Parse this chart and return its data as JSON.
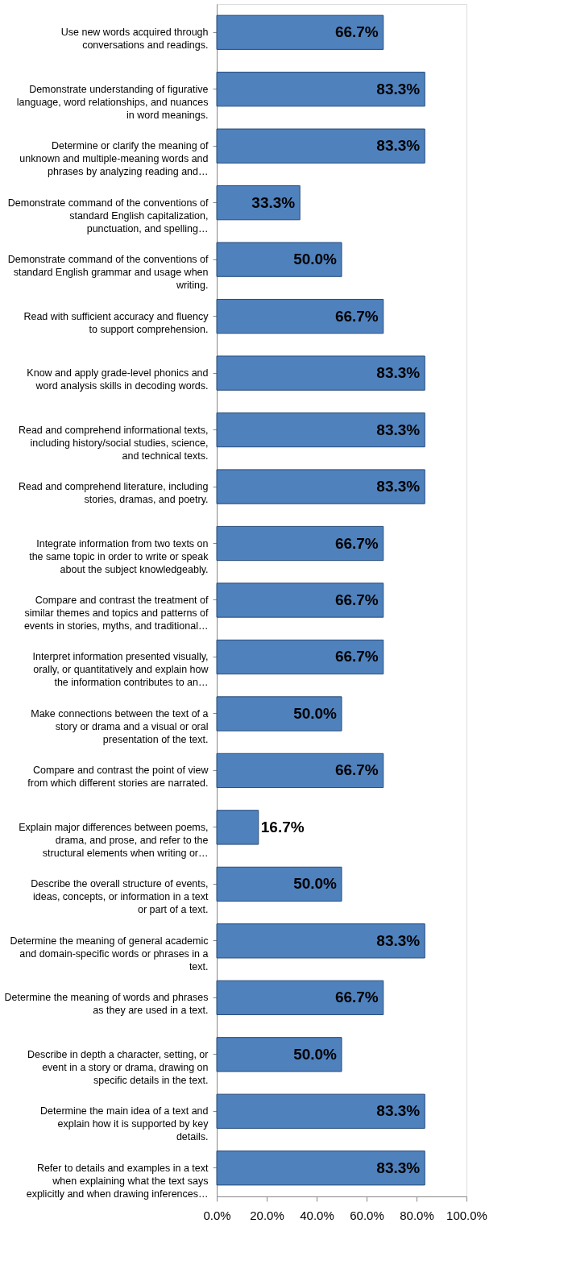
{
  "chart_data": {
    "type": "bar",
    "orientation": "horizontal",
    "categories": [
      "Use new words acquired through conversations and readings.",
      "Demonstrate understanding of figurative language, word relationships, and nuances in word meanings.",
      "Determine or clarify the meaning of unknown and multiple-meaning words and phrases by analyzing reading and…",
      "Demonstrate command of the conventions of standard English capitalization, punctuation, and spelling…",
      "Demonstrate command of the conventions of standard English grammar and usage when writing.",
      "Read with sufficient accuracy and fluency to support comprehension.",
      "Know and apply grade-level phonics and word analysis skills in decoding words.",
      "Read and comprehend informational texts, including history/social studies, science, and technical texts.",
      "Read and comprehend literature, including stories, dramas, and poetry.",
      "Integrate information from two texts on the same topic in order to write or speak about the subject knowledgeably.",
      "Compare and contrast the treatment of similar themes and topics and patterns of events in stories, myths, and traditional…",
      "Interpret information presented visually, orally, or quantitatively and explain how the information contributes to an…",
      "Make connections between the text of a story or drama and a visual or oral presentation of the text.",
      "Compare and contrast the point of view from which different stories are narrated.",
      "Explain major differences between poems, drama, and prose, and refer to the structural elements when writing or…",
      "Describe the overall structure of events, ideas, concepts, or information in a text or part of a text.",
      "Determine the meaning of general academic and domain-specific words or phrases in a text.",
      "Determine the meaning of words and phrases as they are used in a text.",
      "Describe in depth a character, setting, or event in a story or drama, drawing on specific details in the text.",
      "Determine the main idea of a text and explain how it is supported by key details.",
      "Refer to details and examples in a text when explaining what the text says explicitly and when drawing inferences…"
    ],
    "values": [
      66.7,
      83.3,
      83.3,
      33.3,
      50.0,
      66.7,
      83.3,
      83.3,
      83.3,
      66.7,
      66.7,
      66.7,
      50.0,
      66.7,
      16.7,
      50.0,
      83.3,
      66.7,
      50.0,
      83.3,
      83.3
    ],
    "value_labels": [
      "66.7%",
      "83.3%",
      "83.3%",
      "33.3%",
      "50.0%",
      "66.7%",
      "83.3%",
      "83.3%",
      "83.3%",
      "66.7%",
      "66.7%",
      "66.7%",
      "50.0%",
      "66.7%",
      "16.7%",
      "50.0%",
      "83.3%",
      "66.7%",
      "50.0%",
      "83.3%",
      "83.3%"
    ],
    "color": "#4f81bd",
    "xlim": [
      0,
      100
    ],
    "xticks": [
      {
        "value": 0,
        "label": "0.0%"
      },
      {
        "value": 20,
        "label": "20.0%"
      },
      {
        "value": 40,
        "label": "40.0%"
      },
      {
        "value": 60,
        "label": "60.0%"
      },
      {
        "value": 80,
        "label": "80.0%"
      },
      {
        "value": 100,
        "label": "100.0%"
      }
    ],
    "grid": false
  }
}
